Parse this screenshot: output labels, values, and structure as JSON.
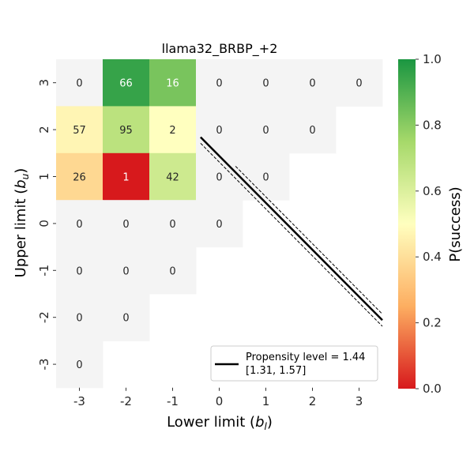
{
  "chart_data": {
    "type": "heatmap",
    "title": "llama32_BRBP_+2",
    "xlabel_text": "Lower limit (",
    "xlabel_sym": "b",
    "xlabel_sub": "l",
    "xlabel_close": ")",
    "ylabel_text": "Upper limit (",
    "ylabel_sym": "b",
    "ylabel_sub": "u",
    "ylabel_close": ")",
    "x_categories": [
      "-3",
      "-2",
      "-1",
      "0",
      "1",
      "2",
      "3"
    ],
    "y_categories": [
      "3",
      "2",
      "1",
      "0",
      "-1",
      "-2",
      "-3"
    ],
    "cells": [
      {
        "x": "-3",
        "y": "3",
        "value": 0,
        "label": "0",
        "colored": false
      },
      {
        "x": "-2",
        "y": "3",
        "value": 0.95,
        "label": "66",
        "colored": true
      },
      {
        "x": "-1",
        "y": "3",
        "value": 0.83,
        "label": "16",
        "colored": true
      },
      {
        "x": "0",
        "y": "3",
        "value": 0,
        "label": "0",
        "colored": false
      },
      {
        "x": "1",
        "y": "3",
        "value": 0,
        "label": "0",
        "colored": false
      },
      {
        "x": "2",
        "y": "3",
        "value": 0,
        "label": "0",
        "colored": false
      },
      {
        "x": "3",
        "y": "3",
        "value": 0,
        "label": "0",
        "colored": false
      },
      {
        "x": "-3",
        "y": "2",
        "value": 0.47,
        "label": "57",
        "colored": true
      },
      {
        "x": "-2",
        "y": "2",
        "value": 0.69,
        "label": "95",
        "colored": true
      },
      {
        "x": "-1",
        "y": "2",
        "value": 0.5,
        "label": "2",
        "colored": true
      },
      {
        "x": "0",
        "y": "2",
        "value": 0,
        "label": "0",
        "colored": false
      },
      {
        "x": "1",
        "y": "2",
        "value": 0,
        "label": "0",
        "colored": false
      },
      {
        "x": "2",
        "y": "2",
        "value": 0,
        "label": "0",
        "colored": false
      },
      {
        "x": "-3",
        "y": "1",
        "value": 0.38,
        "label": "26",
        "colored": true
      },
      {
        "x": "-2",
        "y": "1",
        "value": 0.0,
        "label": "1",
        "colored": true
      },
      {
        "x": "-1",
        "y": "1",
        "value": 0.64,
        "label": "42",
        "colored": true
      },
      {
        "x": "0",
        "y": "1",
        "value": 0,
        "label": "0",
        "colored": false
      },
      {
        "x": "1",
        "y": "1",
        "value": 0,
        "label": "0",
        "colored": false
      },
      {
        "x": "-3",
        "y": "0",
        "value": 0,
        "label": "0",
        "colored": false
      },
      {
        "x": "-2",
        "y": "0",
        "value": 0,
        "label": "0",
        "colored": false
      },
      {
        "x": "-1",
        "y": "0",
        "value": 0,
        "label": "0",
        "colored": false
      },
      {
        "x": "0",
        "y": "0",
        "value": 0,
        "label": "0",
        "colored": false
      },
      {
        "x": "-3",
        "y": "-1",
        "value": 0,
        "label": "0",
        "colored": false
      },
      {
        "x": "-2",
        "y": "-1",
        "value": 0,
        "label": "0",
        "colored": false
      },
      {
        "x": "-1",
        "y": "-1",
        "value": 0,
        "label": "0",
        "colored": false
      },
      {
        "x": "-3",
        "y": "-2",
        "value": 0,
        "label": "0",
        "colored": false
      },
      {
        "x": "-2",
        "y": "-2",
        "value": 0,
        "label": "0",
        "colored": false
      },
      {
        "x": "-3",
        "y": "-3",
        "value": 0,
        "label": "0",
        "colored": false
      }
    ],
    "propensity_line": {
      "level": 1.44,
      "ci": [
        1.31,
        1.57
      ],
      "x_start": -0.4,
      "x_end": 3.5
    },
    "legend": {
      "line1": "Propensity level = 1.44",
      "line2": "[1.31, 1.57]",
      "placement": "lower-right"
    },
    "colorbar": {
      "label": "P(success)",
      "range": [
        0.0,
        1.0
      ],
      "ticks": [
        "0.0",
        "0.2",
        "0.4",
        "0.6",
        "0.8",
        "1.0"
      ],
      "colormap": [
        "#d7191c",
        "#fdae61",
        "#ffffbf",
        "#a6d96a",
        "#1a9641"
      ]
    },
    "empty_cell_color": "#f4f4f4"
  }
}
